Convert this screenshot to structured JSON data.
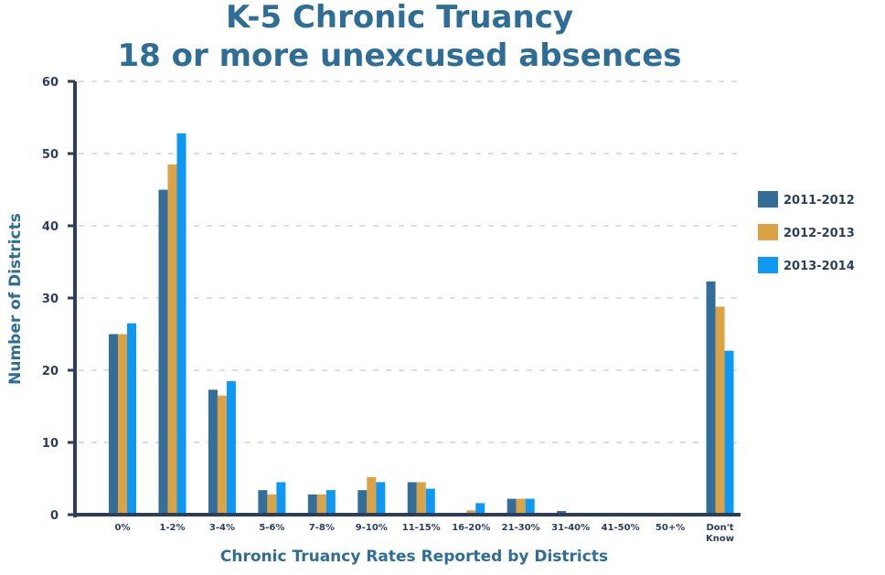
{
  "chart_data": {
    "type": "bar",
    "title": [
      "K-5 Chronic Truancy",
      "18 or more unexcused absences"
    ],
    "xlabel": "Chronic Truancy Rates Reported by Districts",
    "ylabel": "Number of Districts",
    "ylim": [
      0,
      60
    ],
    "yticks": [
      0,
      10,
      20,
      30,
      40,
      50,
      60
    ],
    "grid": true,
    "legend_position": "right",
    "categories": [
      "0%",
      "1-2%",
      "3-4%",
      "5-6%",
      "7-8%",
      "9-10%",
      "11-15%",
      "16-20%",
      "21-30%",
      "31-40%",
      "41-50%",
      "50+%",
      "Don't Know"
    ],
    "series": [
      {
        "name": "2011-2012",
        "color": "#336d99",
        "values": [
          25,
          45,
          17.3,
          3.4,
          2.8,
          3.4,
          4.5,
          0,
          2.2,
          0.5,
          0,
          0,
          32.3
        ]
      },
      {
        "name": "2012-2013",
        "color": "#dba344",
        "values": [
          25,
          48.5,
          16.5,
          2.8,
          2.8,
          5.2,
          4.5,
          0.6,
          2.2,
          0,
          0,
          0,
          28.8
        ]
      },
      {
        "name": "2013-2014",
        "color": "#0d98f3",
        "values": [
          26.5,
          52.8,
          18.5,
          4.5,
          3.4,
          4.5,
          3.6,
          1.6,
          2.2,
          0,
          0,
          0,
          22.7
        ]
      }
    ]
  }
}
